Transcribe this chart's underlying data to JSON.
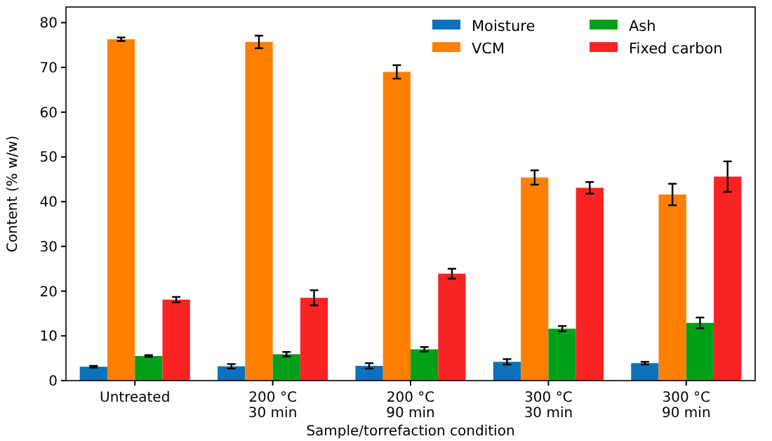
{
  "chart_data": {
    "type": "bar",
    "xlabel": "Sample/torrefaction condition",
    "ylabel": "Content (% w/w)",
    "categories": [
      "Untreated",
      "200 °C\n30 min",
      "200 °C\n90 min",
      "300 °C\n30 min",
      "300 °C\n90 min"
    ],
    "series": [
      {
        "name": "Moisture",
        "color": "#0b72bb",
        "values": [
          3.1,
          3.2,
          3.3,
          4.2,
          3.9
        ],
        "errors": [
          0.2,
          0.5,
          0.6,
          0.6,
          0.3
        ]
      },
      {
        "name": "VCM",
        "color": "#ff8000",
        "values": [
          76.3,
          75.7,
          69,
          45.4,
          41.6
        ],
        "errors": [
          0.4,
          1.4,
          1.5,
          1.6,
          2.4
        ]
      },
      {
        "name": "Ash",
        "color": "#00a01a",
        "values": [
          5.5,
          5.9,
          7,
          11.6,
          12.9
        ],
        "errors": [
          0.2,
          0.5,
          0.5,
          0.6,
          1.2
        ]
      },
      {
        "name": "Fixed carbon",
        "color": "#f82424",
        "values": [
          18.1,
          18.5,
          23.9,
          43.1,
          45.6
        ],
        "errors": [
          0.6,
          1.7,
          1.1,
          1.3,
          3.4
        ]
      }
    ],
    "ylim": [
      0,
      83.5
    ],
    "yticks": [
      0,
      10,
      20,
      30,
      40,
      50,
      60,
      70,
      80
    ],
    "legend": "top right"
  }
}
